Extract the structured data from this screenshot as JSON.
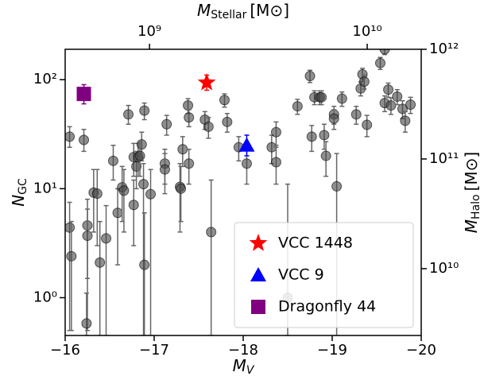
{
  "chart_data": {
    "type": "scatter",
    "x_label": {
      "main": "M",
      "sub": "V"
    },
    "y_label": {
      "main": "N",
      "sub": "GC"
    },
    "x2_label": {
      "main": "M",
      "sub": "Stellar",
      "unit": "[M⊙]"
    },
    "y2_label": {
      "main": "M",
      "sub": "Halo",
      "unit": "[M⊙]"
    },
    "xlim": [
      -16,
      -20
    ],
    "xticks": [
      {
        "value": -16,
        "label": "−16"
      },
      {
        "value": -17,
        "label": "−17"
      },
      {
        "value": -18,
        "label": "−18"
      },
      {
        "value": -19,
        "label": "−19"
      },
      {
        "value": -20,
        "label": "−20"
      }
    ],
    "ylim": [
      0.45,
      190
    ],
    "log_y": true,
    "yticks": [
      {
        "value": 1,
        "label": "10⁰"
      },
      {
        "value": 10,
        "label": "10¹"
      },
      {
        "value": 100,
        "label": "10²"
      }
    ],
    "x2lim": [
      410000000,
      17700000000
    ],
    "log_x2": true,
    "x2ticks": [
      {
        "value": 1000000000,
        "label": "10⁹"
      },
      {
        "value": 10000000000,
        "label": "10¹⁰"
      }
    ],
    "y2lim": [
      2460000000,
      1000000000000
    ],
    "log_y2": true,
    "y2ticks": [
      {
        "value": 10000000000,
        "label": "10¹⁰"
      },
      {
        "value": 100000000000,
        "label": "10¹¹"
      },
      {
        "value": 1000000000000,
        "label": "10¹²"
      }
    ],
    "legend": "lower right",
    "series": [
      {
        "color": "#444444",
        "marker": "circle",
        "x": [
          -16.05,
          -16.05,
          -16.07,
          -16.21,
          -16.25,
          -16.25,
          -16.24,
          -16.32,
          -16.36,
          -16.39,
          -16.46,
          -16.54,
          -16.59,
          -16.64,
          -16.66,
          -16.71,
          -16.77,
          -16.77,
          -16.8,
          -16.82,
          -16.86,
          -16.84,
          -16.88,
          -16.89,
          -16.89,
          -16.96,
          -17.14,
          -17.12,
          -17.12,
          -17.29,
          -17.3,
          -17.32,
          -17.38,
          -17.39,
          -17.39,
          -17.57,
          -17.61,
          -17.64,
          -17.79,
          -17.82,
          -17.95,
          -18.04,
          -18.32,
          -18.37,
          -18.37,
          -18.5,
          -18.61,
          -18.75,
          -18.77,
          -18.8,
          -18.86,
          -18.88,
          -18.91,
          -18.93,
          -19.02,
          -19.02,
          -19.05,
          -19.11,
          -19.27,
          -19.32,
          -19.34,
          -19.36,
          -19.39,
          -19.54,
          -19.59,
          -19.63,
          -19.66,
          -19.73,
          -19.79,
          -19.82,
          -19.88,
          -19.59
        ],
        "values": [
          30,
          4.4,
          2.4,
          28,
          4.6,
          3.7,
          0.58,
          9.2,
          9,
          2.1,
          3.5,
          18,
          6,
          10.3,
          9.6,
          48,
          19.5,
          7.1,
          16,
          19.5,
          25.5,
          20,
          11,
          2,
          52,
          8.9,
          39,
          17,
          15,
          10.4,
          10,
          23,
          58,
          45,
          17,
          43,
          37,
          4,
          65,
          41,
          24,
          17,
          24,
          17.5,
          33,
          1,
          57,
          108,
          30,
          69,
          69,
          69,
          31,
          20,
          48,
          44,
          10.5,
          67,
          48,
          83,
          112,
          96,
          38.5,
          142,
          61,
          81,
          58,
          70,
          54,
          42,
          59,
          190
        ],
        "lower": [
          24,
          0.5,
          0.5,
          22,
          1.5,
          0.5,
          0.45,
          4,
          3,
          0.45,
          0.45,
          12,
          2,
          5,
          4,
          39,
          13,
          3,
          10,
          13,
          18,
          13,
          0.45,
          0.45,
          43,
          0.45,
          31,
          11,
          9,
          4,
          5,
          16,
          49,
          37,
          11,
          35,
          29,
          0.45,
          56,
          33,
          18,
          11,
          17,
          11,
          25,
          0.45,
          48,
          94,
          22,
          59,
          59,
          59,
          23,
          13,
          39,
          35,
          0.45,
          57,
          39,
          71,
          97,
          82,
          30,
          124,
          51,
          69,
          48,
          59,
          44,
          33,
          49,
          170
        ],
        "upper": [
          37,
          7.5,
          5,
          35,
          8,
          6.5,
          1.1,
          15,
          15,
          5,
          7,
          25,
          10,
          16,
          15,
          58,
          26,
          12,
          22,
          26,
          33,
          27,
          17,
          6,
          61,
          15,
          47,
          23,
          21,
          17,
          16,
          30,
          67,
          53,
          23,
          51,
          45,
          12,
          74,
          49,
          30,
          23,
          31,
          24,
          41,
          11,
          66,
          122,
          38,
          79,
          79,
          79,
          39,
          27,
          57,
          53,
          21,
          77,
          57,
          95,
          127,
          110,
          47,
          160,
          71,
          93,
          68,
          81,
          64,
          51,
          69,
          210
        ]
      },
      {
        "name": "VCC 1448",
        "color": "#ff0000",
        "marker": "star",
        "x": [
          -17.59
        ],
        "values": [
          94
        ],
        "lower": [
          80
        ],
        "upper": [
          110
        ]
      },
      {
        "name": "VCC 9",
        "color": "#0000ff",
        "marker": "triangle",
        "x": [
          -18.04
        ],
        "values": [
          25
        ],
        "lower": [
          20
        ],
        "upper": [
          31
        ]
      },
      {
        "name": "Dragonfly 44",
        "color": "#800080",
        "marker": "square",
        "x": [
          -16.21
        ],
        "values": [
          74
        ],
        "lower": [
          60
        ],
        "upper": [
          90
        ]
      }
    ]
  }
}
